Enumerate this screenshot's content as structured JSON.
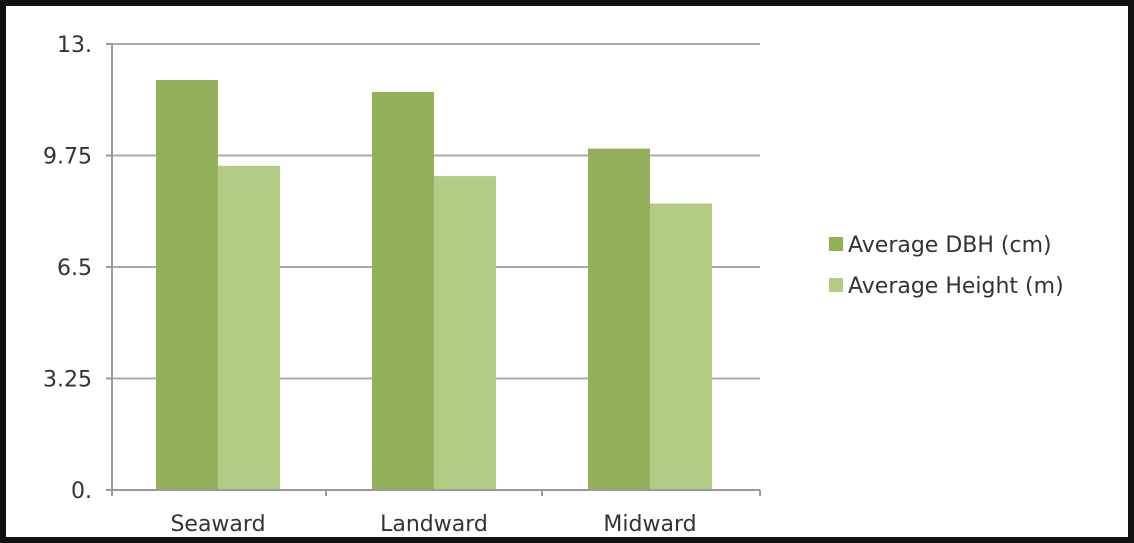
{
  "chart_data": {
    "type": "bar",
    "categories": [
      "Seaward",
      "Landward",
      "Midward"
    ],
    "series": [
      {
        "name": "Average DBH (cm)",
        "values": [
          11.95,
          11.6,
          9.95
        ],
        "color": "#93b05a"
      },
      {
        "name": "Average Height (m)",
        "values": [
          9.45,
          9.15,
          8.35
        ],
        "color": "#b3cc85"
      }
    ],
    "y_ticks": [
      "0.",
      "3.25",
      "6.5",
      "9.75",
      "13."
    ],
    "y_tick_values": [
      0,
      3.25,
      6.5,
      9.75,
      13
    ],
    "ylim": [
      0,
      13
    ],
    "grid": true,
    "legend_position": "right",
    "title": "",
    "xlabel": "",
    "ylabel": ""
  }
}
